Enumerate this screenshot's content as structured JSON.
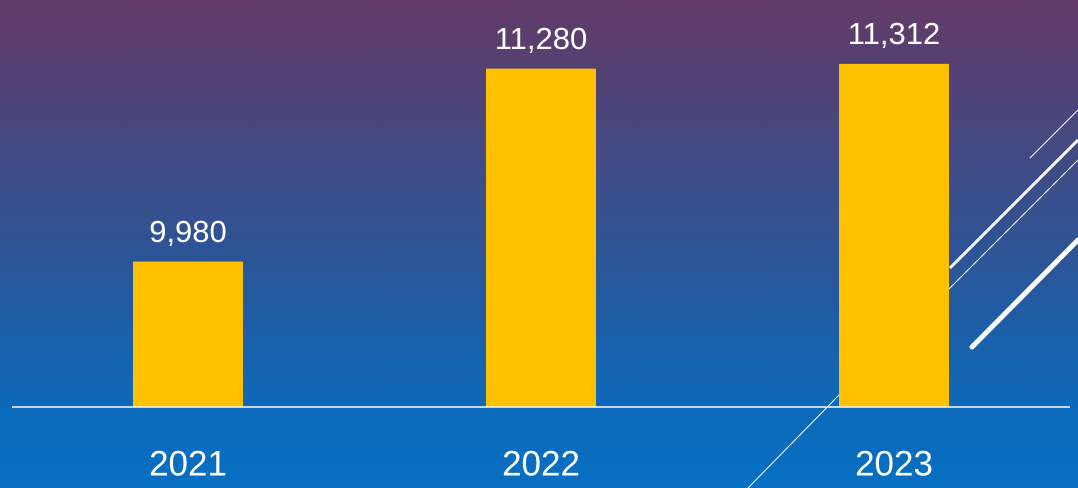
{
  "chart_data": {
    "type": "bar",
    "categories": [
      "2021",
      "2022",
      "2023"
    ],
    "values": [
      9980,
      11280,
      11312
    ],
    "value_labels": [
      "9,980",
      "11,280",
      "11,312"
    ],
    "color": "#ffc000",
    "ylim": [
      9000,
      11500
    ]
  }
}
